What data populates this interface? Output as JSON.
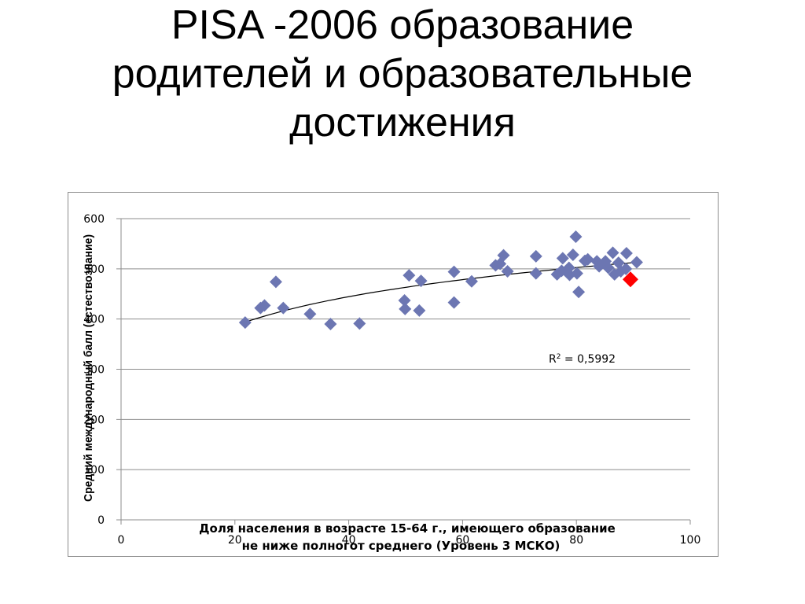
{
  "slide": {
    "title_lines": [
      "PISA -2006 образование",
      "родителей и образовательные",
      "достижения"
    ]
  },
  "chart_data": {
    "type": "scatter",
    "xlabel_lines": [
      "Доля населения в возрасте 15-64 г., имеющего образование",
      "не ниже полногот среднего (Уровень 3 МСКО)"
    ],
    "ylabel": "Средний международный балл (естествознание)",
    "xlim": [
      0,
      100
    ],
    "ylim": [
      0,
      600
    ],
    "x_ticks": [
      "0",
      "20",
      "40",
      "60",
      "80",
      "100"
    ],
    "y_ticks": [
      "0",
      "100",
      "200",
      "300",
      "400",
      "500",
      "600"
    ],
    "grid": "horizontal",
    "annotation": {
      "r2_prefix": "R",
      "r2_exp": "2",
      "r2_value": " = 0,5992"
    },
    "colors": {
      "point": "#6c76b2",
      "highlight": "#ff0000",
      "trend": "#000000",
      "grid": "#8c8c8c"
    },
    "series": [
      {
        "points": [
          [
            21.8,
            393
          ],
          [
            24.5,
            422
          ],
          [
            25.2,
            427
          ],
          [
            27.2,
            474
          ],
          [
            28.5,
            422
          ],
          [
            33.2,
            410
          ],
          [
            36.8,
            390
          ],
          [
            41.9,
            391
          ],
          [
            49.8,
            437
          ],
          [
            49.9,
            420
          ],
          [
            50.6,
            487
          ],
          [
            52.4,
            417
          ],
          [
            52.7,
            476
          ],
          [
            58.5,
            433
          ],
          [
            58.5,
            494
          ],
          [
            61.6,
            475
          ],
          [
            65.8,
            507
          ],
          [
            66.6,
            510
          ],
          [
            67.2,
            527
          ],
          [
            67.9,
            495
          ],
          [
            72.9,
            525
          ],
          [
            72.9,
            491
          ],
          [
            76.6,
            489
          ],
          [
            77.4,
            496
          ],
          [
            77.6,
            521
          ],
          [
            78.7,
            502
          ],
          [
            78.8,
            488
          ],
          [
            79.4,
            528
          ],
          [
            80.1,
            491
          ],
          [
            79.9,
            564
          ],
          [
            80.4,
            454
          ],
          [
            81.5,
            516
          ],
          [
            82.0,
            519
          ],
          [
            83.6,
            515
          ],
          [
            84.0,
            505
          ],
          [
            85.1,
            515
          ],
          [
            85.6,
            502
          ],
          [
            86.4,
            532
          ],
          [
            86.7,
            489
          ],
          [
            87.4,
            512
          ],
          [
            87.8,
            495
          ],
          [
            88.8,
            531
          ],
          [
            88.7,
            500
          ],
          [
            90.6,
            513
          ]
        ]
      }
    ],
    "highlight_point": [
      89.5,
      479
    ],
    "trend_range": [
      21.5,
      90.5
    ]
  }
}
